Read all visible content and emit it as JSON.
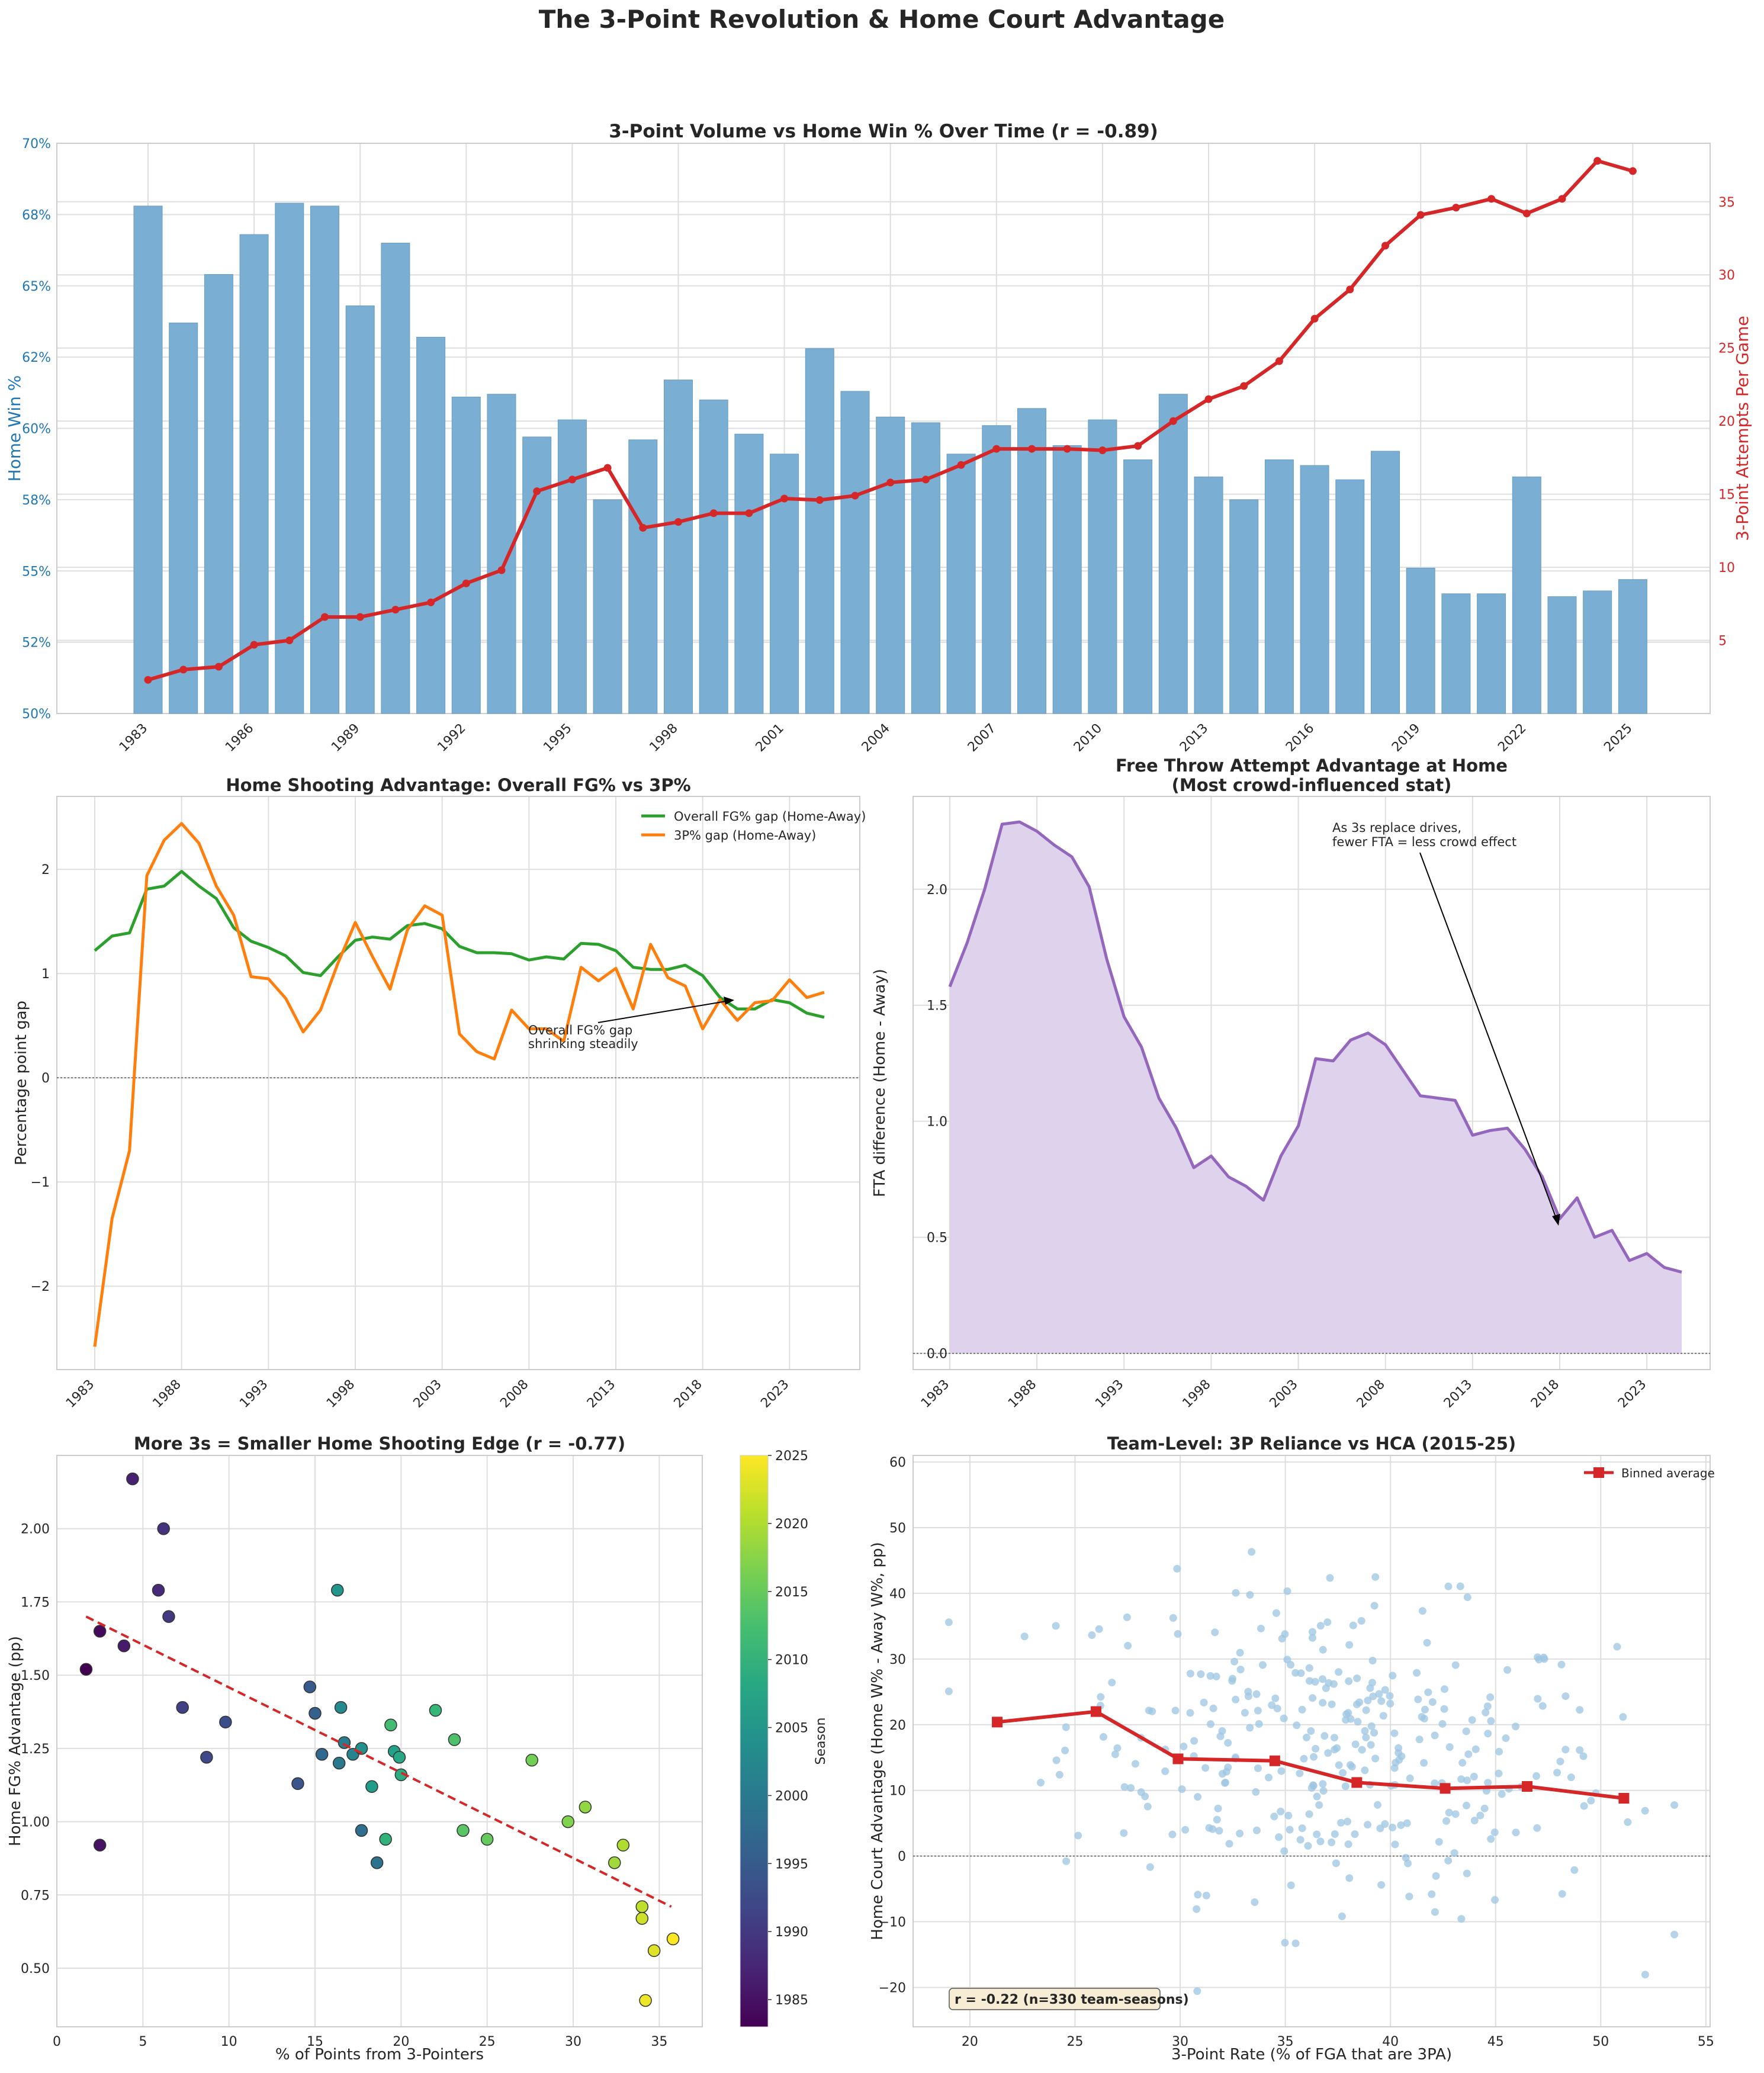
{
  "figure_title": "The 3-Point Revolution & Home Court Advantage",
  "colors": {
    "bar_blue": "#7aaed3",
    "line_red": "#d62728",
    "green": "#2ca02c",
    "orange": "#ff7f0e",
    "purple": "#9467bd",
    "purple_fill": "#dfd2ec",
    "scatter_blue": "#9ec5e1"
  },
  "chart_data": [
    {
      "id": "top",
      "type": "bar",
      "title": "3-Point Volume vs Home Win % Over Time  (r = -0.89)",
      "ylabel_left": "Home Win %",
      "ylabel_right": "3-Point Attempts Per Game",
      "ylim_left": [
        50,
        70
      ],
      "ylim_right": [
        0,
        39
      ],
      "yticks_left": [
        "50%",
        "52%",
        "55%",
        "58%",
        "60%",
        "62%",
        "65%",
        "68%",
        "70%"
      ],
      "yticks_right": [
        "5",
        "10",
        "15",
        "20",
        "25",
        "30",
        "35"
      ],
      "xtick_labels": [
        "1983",
        "1986",
        "1989",
        "1992",
        "1995",
        "1998",
        "2001",
        "2004",
        "2007",
        "2010",
        "2013",
        "2016",
        "2019",
        "2022",
        "2025"
      ],
      "categories": [
        1983,
        1984,
        1985,
        1986,
        1987,
        1988,
        1989,
        1990,
        1991,
        1992,
        1993,
        1994,
        1995,
        1996,
        1997,
        1998,
        1999,
        2000,
        2001,
        2002,
        2003,
        2004,
        2005,
        2006,
        2007,
        2008,
        2009,
        2010,
        2011,
        2012,
        2013,
        2014,
        2015,
        2016,
        2017,
        2018,
        2019,
        2020,
        2021,
        2022,
        2023,
        2024,
        2025
      ],
      "series": [
        {
          "name": "Home Win %",
          "kind": "bar",
          "values": [
            67.8,
            63.7,
            65.4,
            66.8,
            67.9,
            67.8,
            64.3,
            66.5,
            63.2,
            61.1,
            61.2,
            59.7,
            60.3,
            57.5,
            59.6,
            61.7,
            61.0,
            59.8,
            59.1,
            62.8,
            61.3,
            60.4,
            60.2,
            59.1,
            60.1,
            60.7,
            59.4,
            60.3,
            58.9,
            61.2,
            58.3,
            57.5,
            58.9,
            58.7,
            58.2,
            59.2,
            55.1,
            54.2,
            54.2,
            58.3,
            54.1,
            54.3,
            54.7
          ]
        },
        {
          "name": "3-Point Attempts Per Game",
          "kind": "line",
          "values": [
            2.3,
            3.0,
            3.2,
            4.7,
            5.0,
            6.6,
            6.6,
            7.1,
            7.6,
            8.9,
            9.8,
            15.2,
            16.0,
            16.8,
            12.7,
            13.1,
            13.7,
            13.7,
            14.7,
            14.6,
            14.9,
            15.8,
            16.0,
            17.0,
            18.1,
            18.1,
            18.1,
            18.0,
            18.3,
            20.0,
            21.5,
            22.4,
            24.1,
            27.0,
            29.0,
            32.0,
            34.1,
            34.6,
            35.2,
            34.2,
            35.2,
            37.8,
            37.1
          ]
        }
      ]
    },
    {
      "id": "mid_left",
      "type": "line",
      "title": "Home Shooting Advantage: Overall FG% vs 3P%",
      "ylabel": "Percentage point gap",
      "ylim": [
        -2.8,
        2.7
      ],
      "yticks": [
        "−2",
        "−1",
        "0",
        "1",
        "2"
      ],
      "xtick_labels": [
        "1983",
        "1988",
        "1993",
        "1998",
        "2003",
        "2008",
        "2013",
        "2018",
        "2023"
      ],
      "legend": [
        "Overall FG% gap (Home-Away)",
        "3P% gap (Home-Away)"
      ],
      "annotation": [
        "Overall FG% gap",
        "shrinking steadily"
      ],
      "x_start": 1983,
      "series": [
        {
          "name": "Overall FG% gap (Home-Away)",
          "values": [
            1.22,
            1.36,
            1.39,
            1.81,
            1.84,
            1.98,
            1.84,
            1.72,
            1.44,
            1.31,
            1.25,
            1.17,
            1.01,
            0.98,
            1.16,
            1.32,
            1.35,
            1.33,
            1.46,
            1.48,
            1.43,
            1.26,
            1.2,
            1.2,
            1.19,
            1.13,
            1.16,
            1.14,
            1.29,
            1.28,
            1.22,
            1.06,
            1.04,
            1.04,
            1.08,
            0.98,
            0.77,
            0.66,
            0.66,
            0.75,
            0.72,
            0.62,
            0.58
          ]
        },
        {
          "name": "3P% gap (Home-Away)",
          "values": [
            -2.58,
            -1.35,
            -0.7,
            1.94,
            2.28,
            2.44,
            2.25,
            1.84,
            1.56,
            0.97,
            0.95,
            0.76,
            0.44,
            0.65,
            1.1,
            1.49,
            1.16,
            0.85,
            1.42,
            1.65,
            1.56,
            0.42,
            0.25,
            0.18,
            0.65,
            0.47,
            0.47,
            0.35,
            1.06,
            0.93,
            1.05,
            0.66,
            1.28,
            0.96,
            0.88,
            0.47,
            0.75,
            0.55,
            0.72,
            0.74,
            0.94,
            0.77,
            0.82
          ]
        }
      ]
    },
    {
      "id": "mid_right",
      "type": "area",
      "title": [
        "Free Throw Attempt Advantage at Home",
        "(Most crowd-influenced stat)"
      ],
      "ylabel": "FTA difference (Home - Away)",
      "ylim": [
        -0.07,
        2.4
      ],
      "yticks": [
        "0.0",
        "0.5",
        "1.0",
        "1.5",
        "2.0"
      ],
      "xtick_labels": [
        "1983",
        "1988",
        "1993",
        "1998",
        "2003",
        "2008",
        "2013",
        "2018",
        "2023"
      ],
      "annotation": [
        "As 3s replace drives,",
        "fewer FTA = less crowd effect"
      ],
      "x_start": 1983,
      "series": [
        {
          "name": "FTA difference",
          "values": [
            1.58,
            1.77,
            2.0,
            2.28,
            2.29,
            2.25,
            2.19,
            2.14,
            2.01,
            1.7,
            1.45,
            1.32,
            1.1,
            0.97,
            0.8,
            0.85,
            0.76,
            0.72,
            0.66,
            0.85,
            0.98,
            1.27,
            1.26,
            1.35,
            1.38,
            1.33,
            1.22,
            1.11,
            1.1,
            1.09,
            0.94,
            0.96,
            0.97,
            0.88,
            0.76,
            0.58,
            0.67,
            0.5,
            0.53,
            0.4,
            0.43,
            0.37,
            0.35
          ]
        }
      ]
    },
    {
      "id": "bottom_left",
      "type": "scatter",
      "title": "More 3s = Smaller Home Shooting Edge  (r = -0.77)",
      "xlabel": "% of Points from 3-Pointers",
      "ylabel": "Home FG% Advantage (pp)",
      "xlim": [
        0,
        37.5
      ],
      "ylim": [
        0.3,
        2.25
      ],
      "xticks": [
        "0",
        "5",
        "10",
        "15",
        "20",
        "25",
        "30",
        "35"
      ],
      "yticks": [
        "0.50",
        "0.75",
        "1.00",
        "1.25",
        "1.50",
        "1.75",
        "2.00"
      ],
      "colorbar_label": "Season",
      "colorbar_ticks": [
        "1985",
        "1990",
        "1995",
        "2000",
        "2005",
        "2010",
        "2015",
        "2020",
        "2025"
      ],
      "color_range": [
        1983,
        2025
      ],
      "trend": {
        "x": [
          1.7,
          35.7
        ],
        "y": [
          1.7,
          0.71
        ]
      },
      "points": [
        {
          "x": 1.7,
          "y": 1.52,
          "season": 1983
        },
        {
          "x": 2.5,
          "y": 1.65,
          "season": 1984
        },
        {
          "x": 2.5,
          "y": 0.92,
          "season": 1985
        },
        {
          "x": 3.9,
          "y": 1.6,
          "season": 1986
        },
        {
          "x": 4.4,
          "y": 2.17,
          "season": 1987
        },
        {
          "x": 5.9,
          "y": 1.79,
          "season": 1988
        },
        {
          "x": 6.2,
          "y": 2.0,
          "season": 1989
        },
        {
          "x": 6.5,
          "y": 1.7,
          "season": 1990
        },
        {
          "x": 7.3,
          "y": 1.39,
          "season": 1991
        },
        {
          "x": 8.7,
          "y": 1.22,
          "season": 1992
        },
        {
          "x": 9.8,
          "y": 1.34,
          "season": 1993
        },
        {
          "x": 14.0,
          "y": 1.13,
          "season": 1994
        },
        {
          "x": 14.7,
          "y": 1.46,
          "season": 1995
        },
        {
          "x": 15.0,
          "y": 1.37,
          "season": 1996
        },
        {
          "x": 15.4,
          "y": 1.23,
          "season": 1997
        },
        {
          "x": 17.7,
          "y": 0.97,
          "season": 1998
        },
        {
          "x": 18.6,
          "y": 0.86,
          "season": 1999
        },
        {
          "x": 16.4,
          "y": 1.2,
          "season": 2000
        },
        {
          "x": 16.7,
          "y": 1.27,
          "season": 2001
        },
        {
          "x": 17.2,
          "y": 1.23,
          "season": 2002
        },
        {
          "x": 16.5,
          "y": 1.39,
          "season": 2003
        },
        {
          "x": 17.7,
          "y": 1.25,
          "season": 2004
        },
        {
          "x": 16.3,
          "y": 1.79,
          "season": 2005
        },
        {
          "x": 18.3,
          "y": 1.12,
          "season": 2006
        },
        {
          "x": 19.6,
          "y": 1.24,
          "season": 2007
        },
        {
          "x": 19.9,
          "y": 1.22,
          "season": 2008
        },
        {
          "x": 20.0,
          "y": 1.16,
          "season": 2009
        },
        {
          "x": 19.1,
          "y": 0.94,
          "season": 2010
        },
        {
          "x": 22.0,
          "y": 1.38,
          "season": 2011
        },
        {
          "x": 19.4,
          "y": 1.33,
          "season": 2012
        },
        {
          "x": 23.1,
          "y": 1.28,
          "season": 2013
        },
        {
          "x": 23.6,
          "y": 0.97,
          "season": 2014
        },
        {
          "x": 25.0,
          "y": 0.94,
          "season": 2015
        },
        {
          "x": 27.6,
          "y": 1.21,
          "season": 2016
        },
        {
          "x": 29.7,
          "y": 1.0,
          "season": 2017
        },
        {
          "x": 30.7,
          "y": 1.05,
          "season": 2018
        },
        {
          "x": 32.4,
          "y": 0.86,
          "season": 2019
        },
        {
          "x": 32.9,
          "y": 0.92,
          "season": 2020
        },
        {
          "x": 34.0,
          "y": 0.71,
          "season": 2021
        },
        {
          "x": 34.0,
          "y": 0.67,
          "season": 2022
        },
        {
          "x": 34.7,
          "y": 0.56,
          "season": 2023
        },
        {
          "x": 34.2,
          "y": 0.39,
          "season": 2024
        },
        {
          "x": 35.8,
          "y": 0.6,
          "season": 2025
        }
      ]
    },
    {
      "id": "bottom_right",
      "type": "scatter",
      "title": "Team-Level: 3P Reliance vs HCA (2015-25)",
      "xlabel": "3-Point Rate (% of FGA that are 3PA)",
      "ylabel": "Home Court Advantage (Home W% - Away W%, pp)",
      "xlim": [
        17.3,
        55.2
      ],
      "ylim": [
        -26,
        61
      ],
      "xticks": [
        "20",
        "25",
        "30",
        "35",
        "40",
        "45",
        "50",
        "55"
      ],
      "yticks": [
        "−20",
        "−10",
        "0",
        "10",
        "20",
        "30",
        "40",
        "50",
        "60"
      ],
      "legend": [
        "Binned average"
      ],
      "stat_box": "r = -0.22 (n=330 team-seasons)",
      "binned": {
        "x": [
          21.3,
          26.0,
          29.9,
          34.5,
          38.4,
          42.6,
          46.5,
          51.1
        ],
        "y": [
          20.4,
          22.0,
          14.8,
          14.5,
          11.2,
          10.3,
          10.6,
          8.8
        ]
      },
      "point_count": 330
    }
  ]
}
